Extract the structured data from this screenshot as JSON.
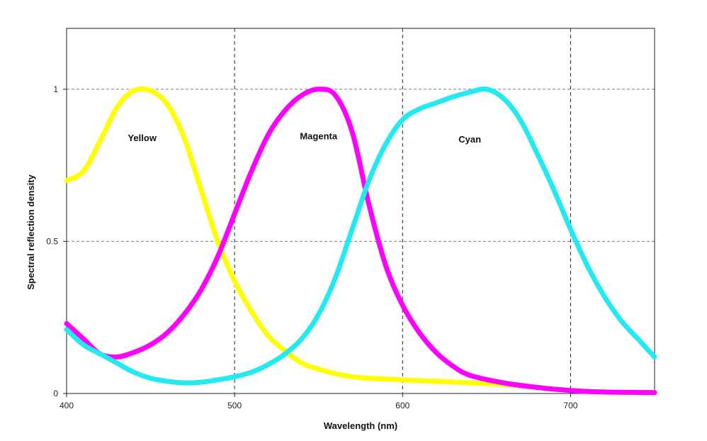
{
  "chart_data": {
    "type": "line",
    "xlabel": "Wavelength (nm)",
    "ylabel": "Spectral reflection density",
    "xlim": [
      400,
      750
    ],
    "ylim": [
      0,
      1.2
    ],
    "x_ticks": [
      400,
      500,
      600,
      700
    ],
    "y_ticks": [
      0,
      0.5,
      1
    ],
    "x_tick_labels": [
      "400",
      "500",
      "600",
      "700"
    ],
    "y_tick_labels": [
      "0",
      "0.5",
      "1"
    ],
    "grid": true,
    "legend": "none",
    "series": [
      {
        "name": "Yellow",
        "color": "#ffff00",
        "label_at": [
          445,
          0.83
        ],
        "points": [
          [
            400,
            0.7
          ],
          [
            410,
            0.73
          ],
          [
            420,
            0.83
          ],
          [
            430,
            0.94
          ],
          [
            440,
            0.995
          ],
          [
            450,
            0.995
          ],
          [
            460,
            0.95
          ],
          [
            470,
            0.84
          ],
          [
            480,
            0.67
          ],
          [
            490,
            0.5
          ],
          [
            500,
            0.37
          ],
          [
            510,
            0.27
          ],
          [
            520,
            0.19
          ],
          [
            530,
            0.14
          ],
          [
            540,
            0.1
          ],
          [
            550,
            0.08
          ],
          [
            560,
            0.065
          ],
          [
            570,
            0.055
          ],
          [
            580,
            0.05
          ],
          [
            600,
            0.045
          ],
          [
            620,
            0.04
          ],
          [
            640,
            0.035
          ],
          [
            660,
            0.03
          ],
          [
            680,
            0.02
          ],
          [
            700,
            0.01
          ],
          [
            720,
            0.005
          ],
          [
            750,
            0.003
          ]
        ]
      },
      {
        "name": "Magenta",
        "color": "#ff00ff",
        "label_at": [
          550,
          0.835
        ],
        "points": [
          [
            400,
            0.23
          ],
          [
            410,
            0.18
          ],
          [
            420,
            0.13
          ],
          [
            430,
            0.12
          ],
          [
            440,
            0.135
          ],
          [
            450,
            0.16
          ],
          [
            460,
            0.2
          ],
          [
            470,
            0.26
          ],
          [
            480,
            0.34
          ],
          [
            490,
            0.45
          ],
          [
            500,
            0.59
          ],
          [
            510,
            0.73
          ],
          [
            520,
            0.85
          ],
          [
            530,
            0.93
          ],
          [
            540,
            0.98
          ],
          [
            550,
            1.0
          ],
          [
            560,
            0.98
          ],
          [
            570,
            0.86
          ],
          [
            580,
            0.62
          ],
          [
            590,
            0.42
          ],
          [
            600,
            0.29
          ],
          [
            610,
            0.2
          ],
          [
            620,
            0.135
          ],
          [
            630,
            0.09
          ],
          [
            640,
            0.06
          ],
          [
            660,
            0.035
          ],
          [
            680,
            0.02
          ],
          [
            700,
            0.01
          ],
          [
            720,
            0.005
          ],
          [
            750,
            0.003
          ]
        ]
      },
      {
        "name": "Cyan",
        "color": "#22eaf0",
        "label_at": [
          640,
          0.825
        ],
        "points": [
          [
            400,
            0.21
          ],
          [
            410,
            0.16
          ],
          [
            420,
            0.13
          ],
          [
            430,
            0.1
          ],
          [
            440,
            0.07
          ],
          [
            450,
            0.05
          ],
          [
            460,
            0.04
          ],
          [
            470,
            0.035
          ],
          [
            480,
            0.037
          ],
          [
            490,
            0.045
          ],
          [
            500,
            0.055
          ],
          [
            510,
            0.07
          ],
          [
            520,
            0.095
          ],
          [
            530,
            0.13
          ],
          [
            540,
            0.18
          ],
          [
            550,
            0.26
          ],
          [
            560,
            0.38
          ],
          [
            570,
            0.54
          ],
          [
            580,
            0.7
          ],
          [
            590,
            0.82
          ],
          [
            600,
            0.9
          ],
          [
            610,
            0.935
          ],
          [
            620,
            0.955
          ],
          [
            630,
            0.975
          ],
          [
            640,
            0.99
          ],
          [
            650,
            1.0
          ],
          [
            660,
            0.97
          ],
          [
            670,
            0.9
          ],
          [
            680,
            0.79
          ],
          [
            690,
            0.67
          ],
          [
            700,
            0.54
          ],
          [
            710,
            0.42
          ],
          [
            720,
            0.32
          ],
          [
            730,
            0.24
          ],
          [
            740,
            0.18
          ],
          [
            750,
            0.12
          ]
        ]
      }
    ]
  }
}
